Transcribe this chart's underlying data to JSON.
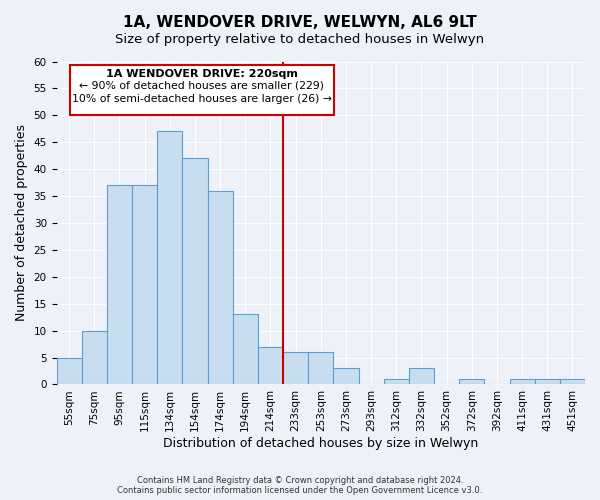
{
  "title": "1A, WENDOVER DRIVE, WELWYN, AL6 9LT",
  "subtitle": "Size of property relative to detached houses in Welwyn",
  "xlabel": "Distribution of detached houses by size in Welwyn",
  "ylabel": "Number of detached properties",
  "bar_labels": [
    "55sqm",
    "75sqm",
    "95sqm",
    "115sqm",
    "134sqm",
    "154sqm",
    "174sqm",
    "194sqm",
    "214sqm",
    "233sqm",
    "253sqm",
    "273sqm",
    "293sqm",
    "312sqm",
    "332sqm",
    "352sqm",
    "372sqm",
    "392sqm",
    "411sqm",
    "431sqm",
    "451sqm"
  ],
  "bar_heights": [
    5,
    10,
    37,
    37,
    47,
    42,
    36,
    13,
    7,
    6,
    6,
    3,
    0,
    1,
    3,
    0,
    1,
    0,
    1,
    1,
    1
  ],
  "bar_color": "#c9ddf0",
  "bar_edge_color": "#5a9fd4",
  "vertical_line_x": 8.5,
  "vertical_line_color": "#cc0000",
  "ylim": [
    0,
    60
  ],
  "annotation_title": "1A WENDOVER DRIVE: 220sqm",
  "annotation_line1": "← 90% of detached houses are smaller (229)",
  "annotation_line2": "10% of semi-detached houses are larger (26) →",
  "annotation_box_color": "#ffffff",
  "annotation_box_edge": "#cc0000",
  "footnote1": "Contains HM Land Registry data © Crown copyright and database right 2024.",
  "footnote2": "Contains public sector information licensed under the Open Government Licence v3.0.",
  "background_color": "#eef2f8",
  "grid_color": "#ffffff",
  "title_fontsize": 11,
  "subtitle_fontsize": 9.5,
  "axis_label_fontsize": 9,
  "tick_fontsize": 7.5
}
